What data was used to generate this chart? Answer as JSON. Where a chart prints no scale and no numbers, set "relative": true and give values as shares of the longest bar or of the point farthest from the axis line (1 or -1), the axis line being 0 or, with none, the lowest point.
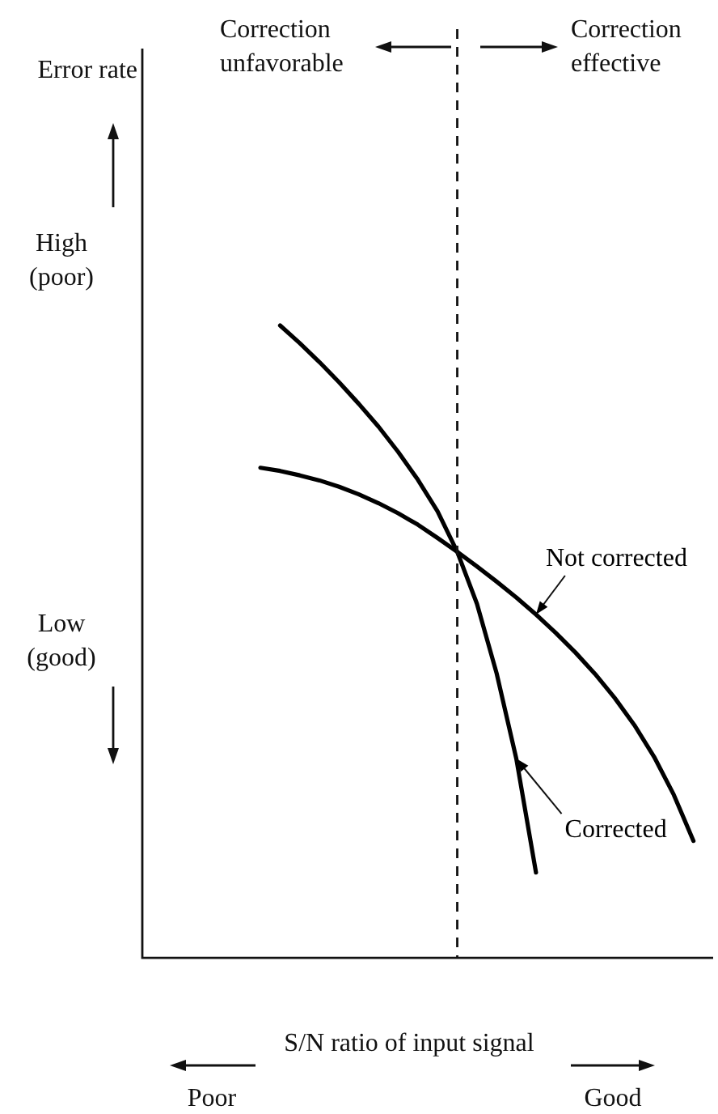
{
  "chart_data": {
    "type": "line",
    "relative": true,
    "xlabel": "S/N ratio of input signal",
    "categories": [
      null,
      null,
      null,
      null,
      null,
      null,
      null,
      null,
      null,
      null,
      null,
      null,
      null,
      null,
      null,
      null,
      null,
      null,
      null,
      null,
      null,
      null,
      null,
      null,
      null,
      null,
      null,
      null,
      null,
      null
    ],
    "series": [
      {
        "name": "Corrected",
        "color": "#000000",
        "values": [
          null,
          null,
          null,
          null,
          null,
          null,
          null,
          1.0,
          0.972,
          0.942,
          0.91,
          0.876,
          0.84,
          0.8,
          0.756,
          0.706,
          0.642,
          0.56,
          0.45,
          0.315,
          0.135,
          null,
          null,
          null,
          null,
          null,
          null,
          null,
          null,
          null
        ]
      },
      {
        "name": "Not corrected",
        "color": "#000000",
        "values": [
          null,
          null,
          null,
          null,
          null,
          null,
          0.775,
          0.77,
          0.763,
          0.755,
          0.745,
          0.733,
          0.719,
          0.703,
          0.685,
          0.664,
          0.642,
          0.619,
          0.595,
          0.57,
          0.543,
          0.514,
          0.483,
          0.449,
          0.411,
          0.368,
          0.318,
          0.258,
          0.185,
          null
        ]
      }
    ],
    "annotations": [
      "Error rate",
      "High (poor)",
      "Low (good)",
      "Correction unfavorable",
      "Correction effective",
      "Poor",
      "Good"
    ],
    "marker": "none",
    "line_style": "solid",
    "legend": false
  }
}
